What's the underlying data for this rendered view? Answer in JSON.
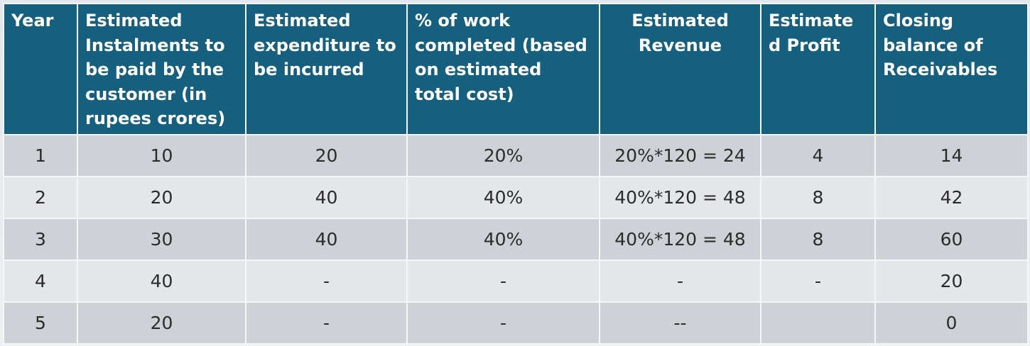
{
  "table": {
    "headers": [
      "Year",
      "Estimated Instalments to be  paid by the customer (in rupees crores)",
      "Estimated expenditure to be incurred",
      "% of work completed (based on estimated total cost)",
      "Estimated Revenue",
      "Estimate d Profit",
      "Closing balance of Receivables"
    ],
    "rows": [
      [
        "1",
        "10",
        "20",
        "20%",
        "20%*120 = 24",
        "4",
        "14"
      ],
      [
        "2",
        "20",
        "40",
        "40%",
        "40%*120 = 48",
        "8",
        "42"
      ],
      [
        "3",
        "30",
        "40",
        "40%",
        "40%*120 = 48",
        "8",
        "60"
      ],
      [
        "4",
        "40",
        "-",
        "-",
        "-",
        "-",
        "20"
      ],
      [
        "5",
        "20",
        "-",
        "-",
        "--",
        "",
        "0"
      ]
    ]
  },
  "colors": {
    "header_bg": "#16607f",
    "header_text": "#ffffff",
    "row_dark": "#ced2d6",
    "row_light": "#e4e6e9",
    "cell_text": "#2b2b2b"
  }
}
